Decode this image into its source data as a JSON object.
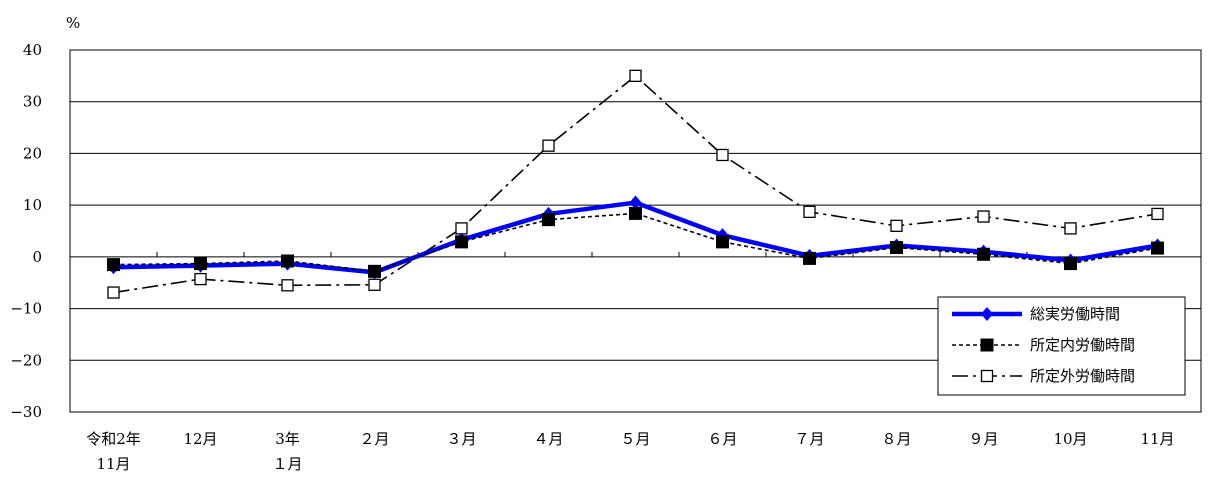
{
  "chart_data": {
    "type": "line",
    "y_unit": "%",
    "ylim": [
      -30,
      40
    ],
    "yticks": [
      40,
      30,
      20,
      10,
      0,
      -10,
      -20,
      -30
    ],
    "ytick_labels": [
      "40",
      "30",
      "20",
      "10",
      "0",
      "−10",
      "−20",
      "−30"
    ],
    "categories": [
      {
        "line1": "令和2年",
        "line2": "11月"
      },
      {
        "line1": "12月",
        "line2": ""
      },
      {
        "line1": "3年",
        "line2": "１月"
      },
      {
        "line1": "２月",
        "line2": ""
      },
      {
        "line1": "３月",
        "line2": ""
      },
      {
        "line1": "４月",
        "line2": ""
      },
      {
        "line1": "５月",
        "line2": ""
      },
      {
        "line1": "６月",
        "line2": ""
      },
      {
        "line1": "７月",
        "line2": ""
      },
      {
        "line1": "８月",
        "line2": ""
      },
      {
        "line1": "９月",
        "line2": ""
      },
      {
        "line1": "10月",
        "line2": ""
      },
      {
        "line1": "11月",
        "line2": ""
      }
    ],
    "series": [
      {
        "name": "総実労働時間",
        "color": "#0000ff",
        "style": "solid-thick",
        "marker": "diamond",
        "values": [
          -2.0,
          -1.7,
          -1.3,
          -3.0,
          3.3,
          8.3,
          10.5,
          4.2,
          0.2,
          2.2,
          1.0,
          -0.7,
          2.2
        ]
      },
      {
        "name": "所定内労働時間",
        "color": "#000000",
        "style": "dotted",
        "marker": "filled-square",
        "values": [
          -1.5,
          -1.3,
          -0.8,
          -2.8,
          2.9,
          7.2,
          8.4,
          2.9,
          -0.3,
          1.8,
          0.5,
          -1.3,
          1.7
        ]
      },
      {
        "name": "所定外労働時間",
        "color": "#000000",
        "style": "dash-dot",
        "marker": "hollow-square",
        "values": [
          -6.9,
          -4.3,
          -5.5,
          -5.4,
          5.5,
          21.5,
          35.0,
          19.7,
          8.7,
          6.0,
          7.8,
          5.5,
          8.3
        ]
      }
    ],
    "legend_position": "bottom-right",
    "grid": "horizontal"
  }
}
